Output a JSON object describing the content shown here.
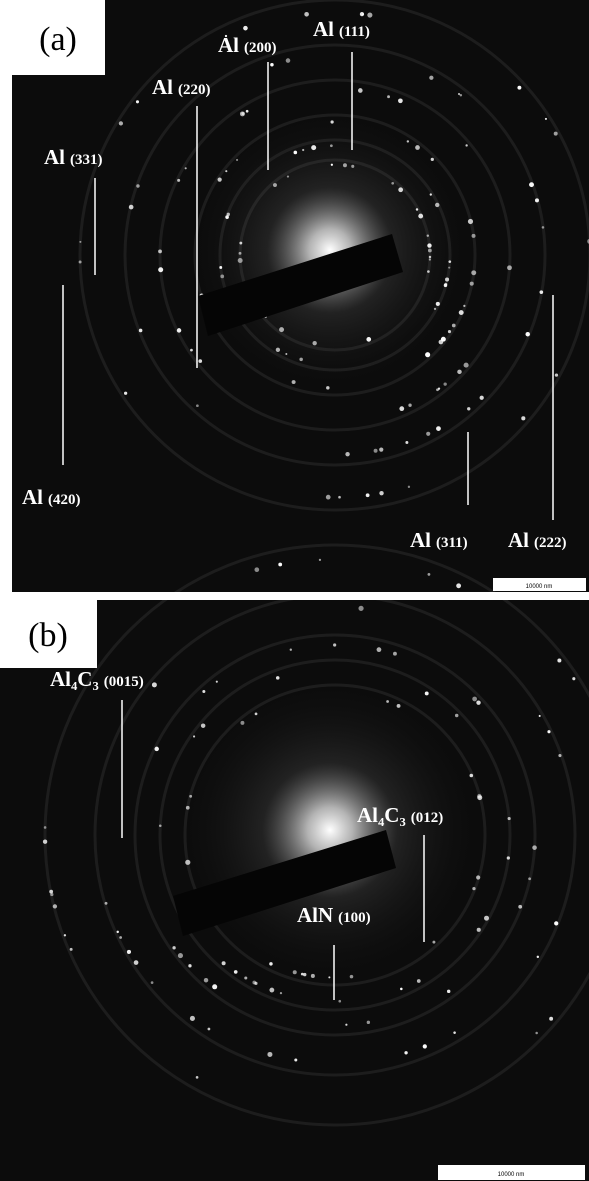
{
  "panels": [
    {
      "label": "(a)",
      "scale_bar": "10000 nm",
      "annotations": [
        {
          "phase": "Al",
          "plane": "(200)"
        },
        {
          "phase": "Al",
          "plane": "(111)"
        },
        {
          "phase": "Al",
          "plane": "(220)"
        },
        {
          "phase": "Al",
          "plane": "(331)"
        },
        {
          "phase": "Al",
          "plane": "(420)"
        },
        {
          "phase": "Al",
          "plane": "(311)"
        },
        {
          "phase": "Al",
          "plane": "(222)"
        }
      ]
    },
    {
      "label": "(b)",
      "scale_bar": "10000 nm",
      "annotations": [
        {
          "phase": "Al₄C₃",
          "plane": "(0015)"
        },
        {
          "phase": "Al₄C₃",
          "plane": "(012)"
        },
        {
          "phase": "AlN",
          "plane": "(100)"
        }
      ]
    }
  ]
}
